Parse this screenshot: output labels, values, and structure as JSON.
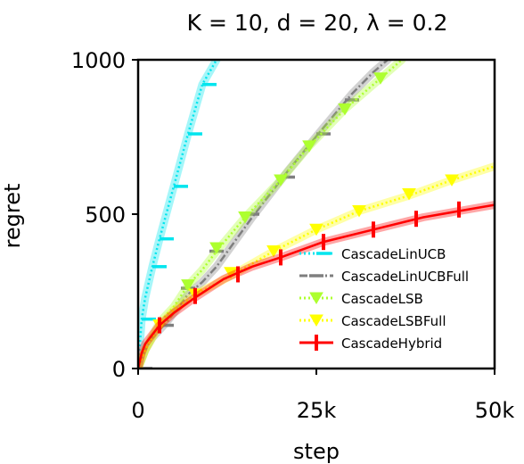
{
  "chart_data": {
    "type": "line",
    "title": "K = 10, d = 20, λ = 0.2",
    "xlabel": "step",
    "ylabel": "regret",
    "xlim": [
      0,
      50000
    ],
    "ylim": [
      0,
      1000
    ],
    "xticks": [
      0,
      25000,
      50000
    ],
    "xtick_labels": [
      "0",
      "25k",
      "50k"
    ],
    "yticks": [
      0,
      500,
      1000
    ],
    "ytick_labels": [
      "0",
      "500",
      "1000"
    ],
    "grid": false,
    "legend_position": "lower-right",
    "series": [
      {
        "name": "CascadeLinUCB",
        "color": "#00e5ee",
        "linestyle": "dotted",
        "marker": "tick-right",
        "x": [
          0,
          500,
          1000,
          2000,
          3000,
          5000,
          7000,
          9000,
          11000
        ],
        "y": [
          0,
          160,
          230,
          330,
          420,
          590,
          760,
          920,
          1000
        ],
        "markers_x": [
          500,
          2000,
          3000,
          5000,
          7000,
          9000
        ],
        "markers_y": [
          160,
          330,
          420,
          590,
          760,
          920
        ]
      },
      {
        "name": "CascadeLinUCBFull",
        "color": "#7f7f7f",
        "linestyle": "dashdot",
        "marker": "hline",
        "x": [
          0,
          1000,
          2000,
          4000,
          7000,
          9000,
          11000,
          16000,
          21000,
          26000,
          30000,
          33000,
          35000
        ],
        "y": [
          0,
          60,
          100,
          150,
          240,
          280,
          330,
          490,
          640,
          780,
          890,
          960,
          1000
        ],
        "markers_x": [
          1000,
          4000,
          7000,
          11000,
          16000,
          21000,
          26000,
          30000
        ],
        "markers_y": [
          0,
          140,
          260,
          380,
          500,
          620,
          760,
          870
        ]
      },
      {
        "name": "CascadeLSB",
        "color": "#adff2f",
        "linestyle": "dotted",
        "marker": "triangle-down",
        "x": [
          0,
          1000,
          3000,
          5000,
          7000,
          9000,
          11000,
          15000,
          20000,
          24000,
          29000,
          34000,
          37000
        ],
        "y": [
          0,
          60,
          150,
          200,
          270,
          320,
          380,
          490,
          610,
          720,
          840,
          940,
          1000
        ],
        "markers_x": [
          7000,
          11000,
          15000,
          20000,
          24000,
          29000,
          34000
        ],
        "markers_y": [
          270,
          390,
          490,
          610,
          720,
          840,
          940
        ]
      },
      {
        "name": "CascadeLSBFull",
        "color": "#ffff00",
        "linestyle": "dotted",
        "marker": "triangle-down",
        "x": [
          0,
          1000,
          3000,
          5000,
          8000,
          13000,
          19000,
          25000,
          31000,
          38000,
          44000,
          50000
        ],
        "y": [
          0,
          60,
          140,
          190,
          240,
          300,
          380,
          450,
          510,
          560,
          610,
          655
        ],
        "markers_x": [
          3000,
          8000,
          13000,
          19000,
          25000,
          31000,
          38000,
          44000
        ],
        "markers_y": [
          140,
          240,
          310,
          380,
          450,
          510,
          565,
          610
        ]
      },
      {
        "name": "CascadeHybrid",
        "color": "#ff0000",
        "linestyle": "solid",
        "marker": "vbar",
        "x": [
          0,
          500,
          1000,
          3000,
          5000,
          8000,
          12000,
          16000,
          20000,
          26000,
          33000,
          40000,
          45000,
          50000
        ],
        "y": [
          0,
          50,
          80,
          140,
          180,
          230,
          290,
          330,
          360,
          410,
          450,
          490,
          510,
          530
        ],
        "markers_x": [
          3000,
          8000,
          14000,
          20000,
          26000,
          33000,
          39000,
          45000
        ],
        "markers_y": [
          140,
          235,
          305,
          360,
          410,
          450,
          485,
          515
        ]
      }
    ]
  }
}
